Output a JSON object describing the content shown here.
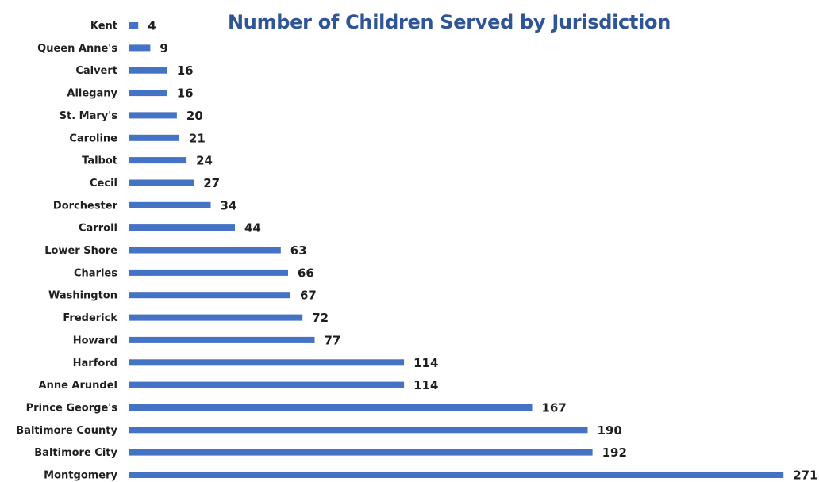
{
  "chart_data": {
    "type": "bar",
    "orientation": "horizontal",
    "title": "Number of Children Served by Jurisdiction",
    "categories": [
      "Kent",
      "Queen Anne's",
      "Calvert",
      "Allegany",
      "St. Mary's",
      "Caroline",
      "Talbot",
      "Cecil",
      "Dorchester",
      "Carroll",
      "Lower Shore",
      "Charles",
      "Washington",
      "Frederick",
      "Howard",
      "Harford",
      "Anne Arundel",
      "Prince George's",
      "Baltimore County",
      "Baltimore City",
      "Montgomery"
    ],
    "values": [
      4,
      9,
      16,
      16,
      20,
      21,
      24,
      27,
      34,
      44,
      63,
      66,
      67,
      72,
      77,
      114,
      114,
      167,
      190,
      192,
      271
    ],
    "data_labels": true,
    "grid": false,
    "legend": "none",
    "xlim": [
      0,
      271
    ],
    "bar_color": "#4472c4"
  }
}
